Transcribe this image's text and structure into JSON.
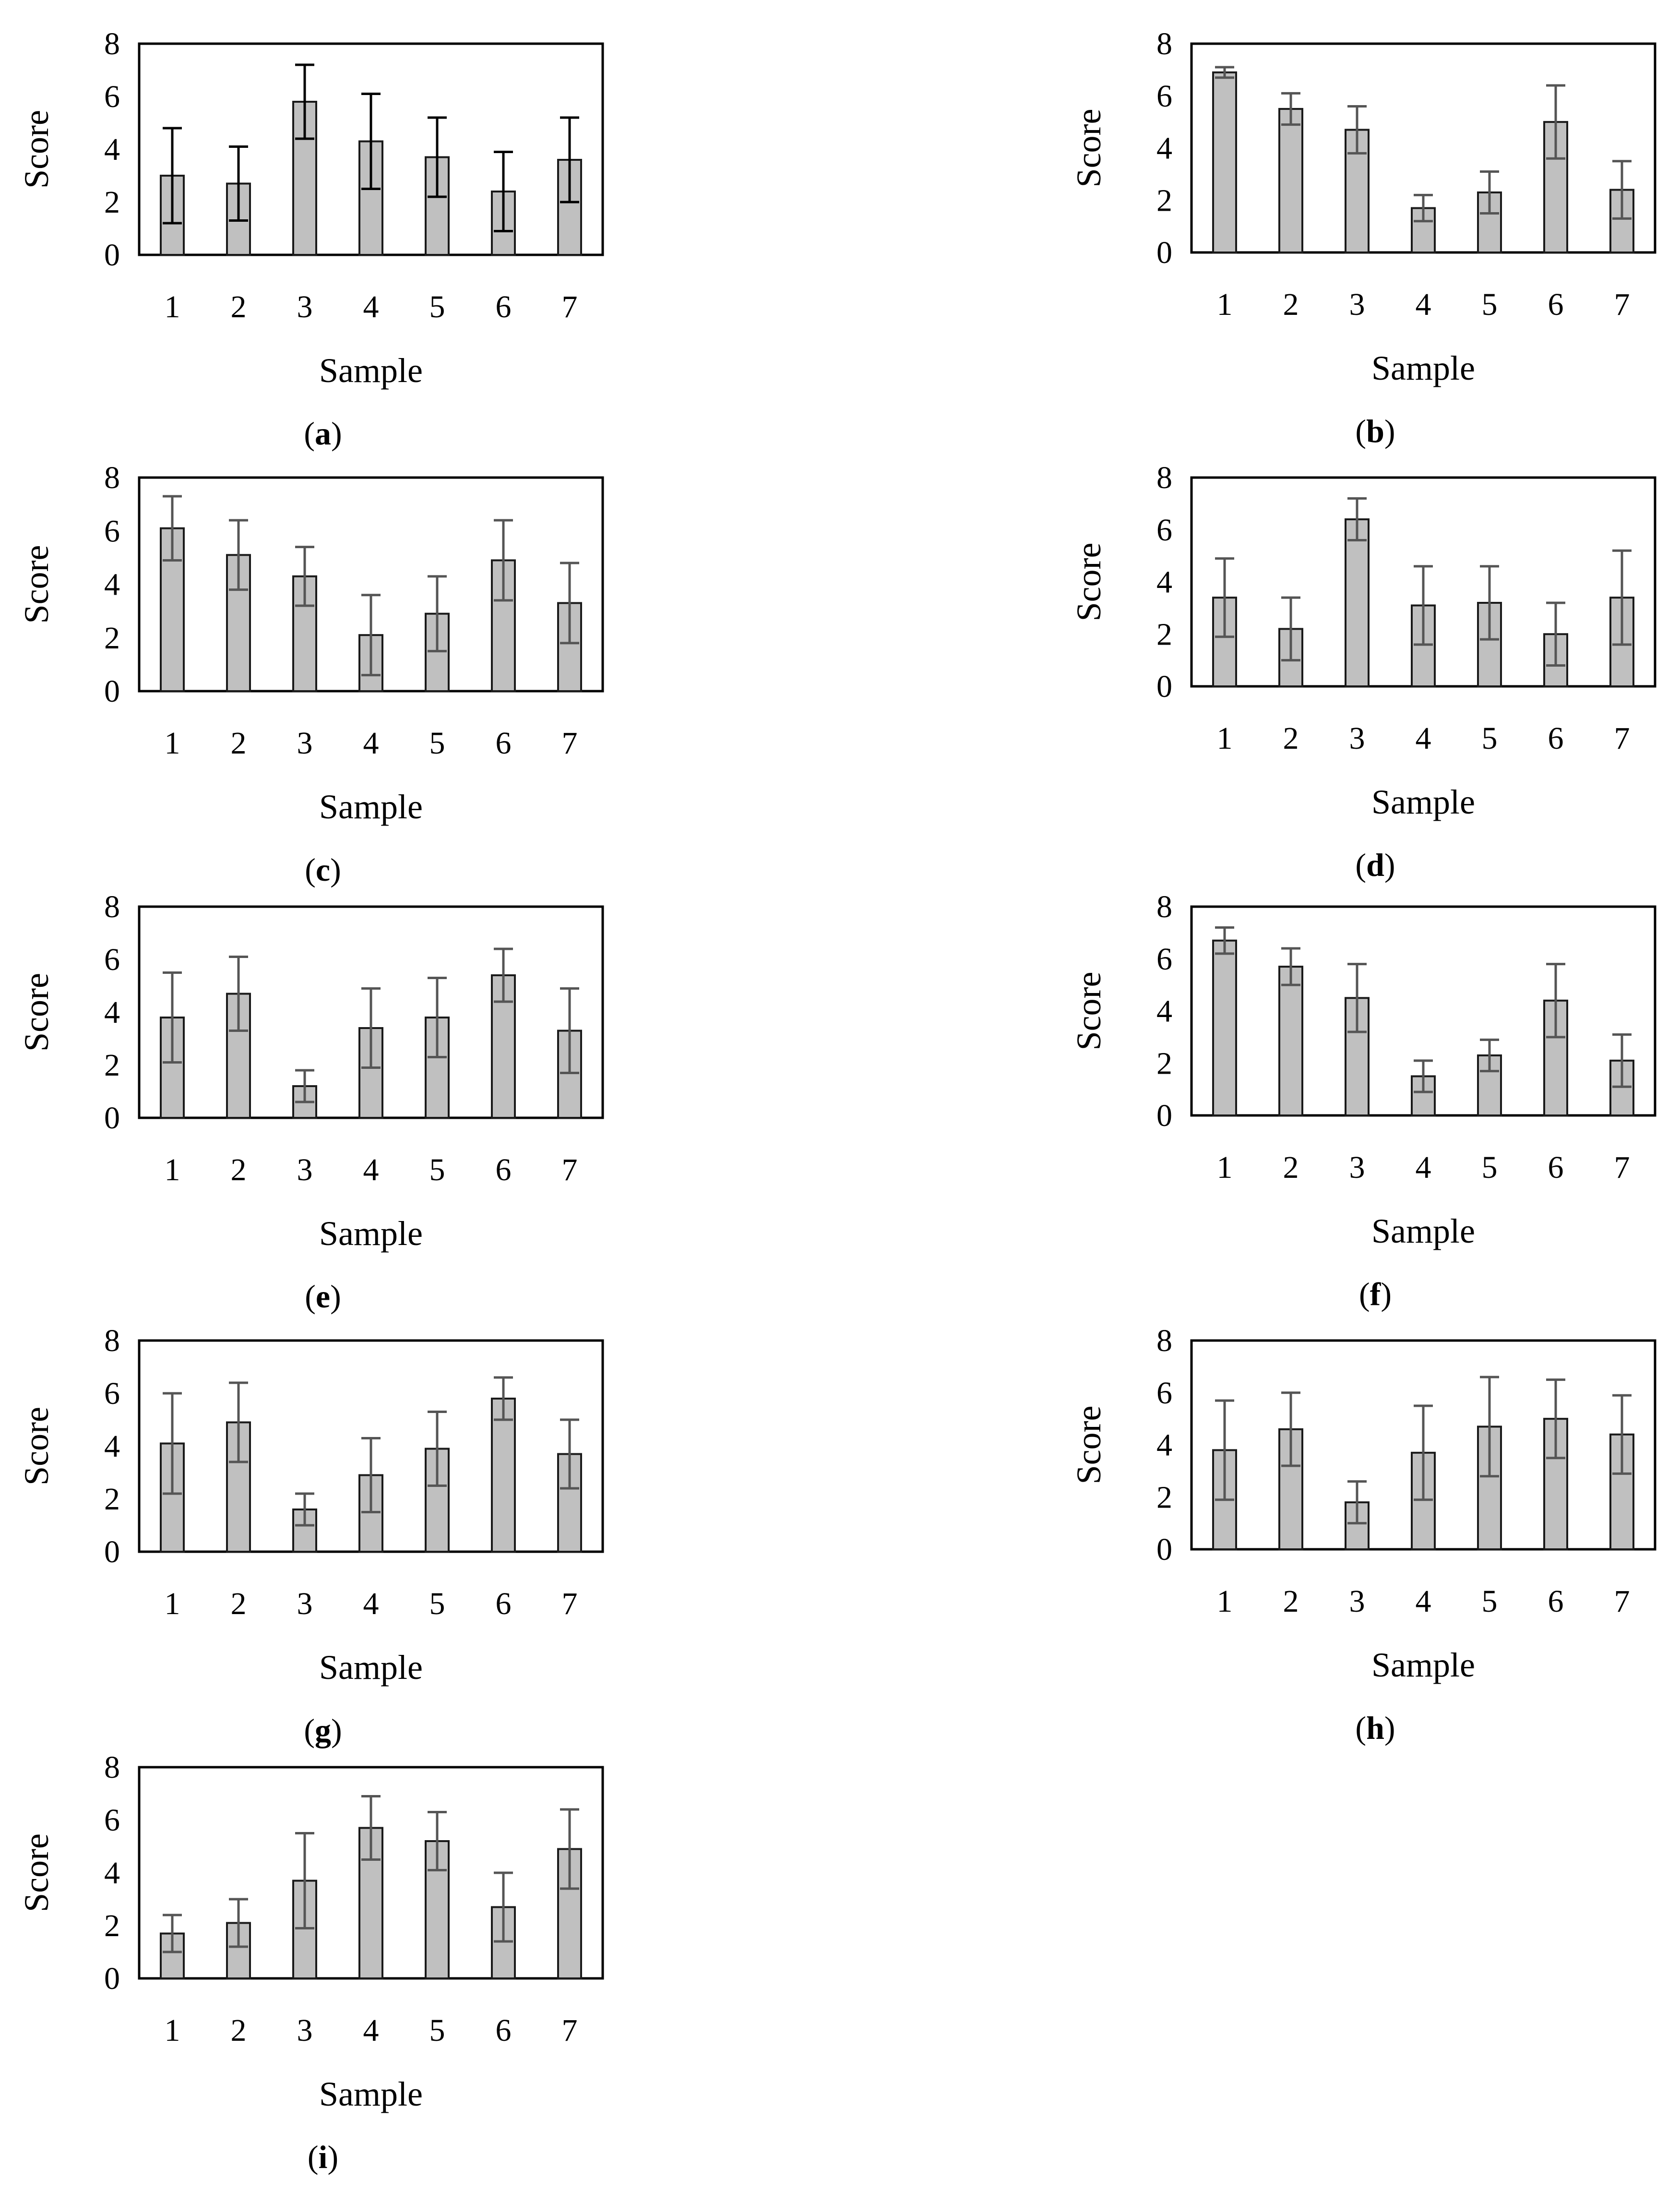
{
  "figure": {
    "background": "#ffffff",
    "bar_fill": "#c0c0c0",
    "bar_stroke": "#1a1a1a",
    "error_bar_color": "#555555",
    "frame_color": "#000000"
  },
  "chart_data": [
    {
      "id": "a",
      "type": "bar",
      "label": "(a)",
      "categories": [
        "1",
        "2",
        "3",
        "4",
        "5",
        "6",
        "7"
      ],
      "values": [
        3.0,
        2.7,
        5.8,
        4.3,
        3.7,
        2.4,
        3.6
      ],
      "errors": [
        1.8,
        1.4,
        1.4,
        1.8,
        1.5,
        1.5,
        1.6
      ],
      "xlabel": "Sample",
      "ylabel": "Score",
      "ylim": [
        0,
        8
      ],
      "yticks": [
        "0",
        "2",
        "4",
        "6",
        "8"
      ],
      "error_color": "#000000"
    },
    {
      "id": "b",
      "type": "bar",
      "label": "(b)",
      "categories": [
        "1",
        "2",
        "3",
        "4",
        "5",
        "6",
        "7"
      ],
      "values": [
        6.9,
        5.5,
        4.7,
        1.7,
        2.3,
        5.0,
        2.4
      ],
      "errors": [
        0.2,
        0.6,
        0.9,
        0.5,
        0.8,
        1.4,
        1.1
      ],
      "xlabel": "Sample",
      "ylabel": "Score",
      "ylim": [
        0,
        8
      ],
      "yticks": [
        "0",
        "2",
        "4",
        "6",
        "8"
      ]
    },
    {
      "id": "c",
      "type": "bar",
      "label": "(c)",
      "categories": [
        "1",
        "2",
        "3",
        "4",
        "5",
        "6",
        "7"
      ],
      "values": [
        6.1,
        5.1,
        4.3,
        2.1,
        2.9,
        4.9,
        3.3
      ],
      "errors": [
        1.2,
        1.3,
        1.1,
        1.5,
        1.4,
        1.5,
        1.5
      ],
      "xlabel": "Sample",
      "ylabel": "Score",
      "ylim": [
        0,
        8
      ],
      "yticks": [
        "0",
        "2",
        "4",
        "6",
        "8"
      ]
    },
    {
      "id": "d",
      "type": "bar",
      "label": "(d)",
      "categories": [
        "1",
        "2",
        "3",
        "4",
        "5",
        "6",
        "7"
      ],
      "values": [
        3.4,
        2.2,
        6.4,
        3.1,
        3.2,
        2.0,
        3.4
      ],
      "errors": [
        1.5,
        1.2,
        0.8,
        1.5,
        1.4,
        1.2,
        1.8
      ],
      "xlabel": "Sample",
      "ylabel": "Score",
      "ylim": [
        0,
        8
      ],
      "yticks": [
        "0",
        "2",
        "4",
        "6",
        "8"
      ]
    },
    {
      "id": "e",
      "type": "bar",
      "label": "(e)",
      "categories": [
        "1",
        "2",
        "3",
        "4",
        "5",
        "6",
        "7"
      ],
      "values": [
        3.8,
        4.7,
        1.2,
        3.4,
        3.8,
        5.4,
        3.3
      ],
      "errors": [
        1.7,
        1.4,
        0.6,
        1.5,
        1.5,
        1.0,
        1.6
      ],
      "xlabel": "Sample",
      "ylabel": "Score",
      "ylim": [
        0,
        8
      ],
      "yticks": [
        "0",
        "2",
        "4",
        "6",
        "8"
      ]
    },
    {
      "id": "f",
      "type": "bar",
      "label": "(f)",
      "categories": [
        "1",
        "2",
        "3",
        "4",
        "5",
        "6",
        "7"
      ],
      "values": [
        6.7,
        5.7,
        4.5,
        1.5,
        2.3,
        4.4,
        2.1
      ],
      "errors": [
        0.5,
        0.7,
        1.3,
        0.6,
        0.6,
        1.4,
        1.0
      ],
      "xlabel": "Sample",
      "ylabel": "Score",
      "ylim": [
        0,
        8
      ],
      "yticks": [
        "0",
        "2",
        "4",
        "6",
        "8"
      ]
    },
    {
      "id": "g",
      "type": "bar",
      "label": "(g)",
      "categories": [
        "1",
        "2",
        "3",
        "4",
        "5",
        "6",
        "7"
      ],
      "values": [
        4.1,
        4.9,
        1.6,
        2.9,
        3.9,
        5.8,
        3.7
      ],
      "errors": [
        1.9,
        1.5,
        0.6,
        1.4,
        1.4,
        0.8,
        1.3
      ],
      "xlabel": "Sample",
      "ylabel": "Score",
      "ylim": [
        0,
        8
      ],
      "yticks": [
        "0",
        "2",
        "4",
        "6",
        "8"
      ]
    },
    {
      "id": "h",
      "type": "bar",
      "label": "(h)",
      "categories": [
        "1",
        "2",
        "3",
        "4",
        "5",
        "6",
        "7"
      ],
      "values": [
        3.8,
        4.6,
        1.8,
        3.7,
        4.7,
        5.0,
        4.4
      ],
      "errors": [
        1.9,
        1.4,
        0.8,
        1.8,
        1.9,
        1.5,
        1.5
      ],
      "xlabel": "Sample",
      "ylabel": "Score",
      "ylim": [
        0,
        8
      ],
      "yticks": [
        "0",
        "2",
        "4",
        "6",
        "8"
      ]
    },
    {
      "id": "i",
      "type": "bar",
      "label": "(i)",
      "categories": [
        "1",
        "2",
        "3",
        "4",
        "5",
        "6",
        "7"
      ],
      "values": [
        1.7,
        2.1,
        3.7,
        5.7,
        5.2,
        2.7,
        4.9
      ],
      "errors": [
        0.7,
        0.9,
        1.8,
        1.2,
        1.1,
        1.3,
        1.5
      ],
      "xlabel": "Sample",
      "ylabel": "Score",
      "ylim": [
        0,
        8
      ],
      "yticks": [
        "0",
        "2",
        "4",
        "6",
        "8"
      ]
    }
  ]
}
